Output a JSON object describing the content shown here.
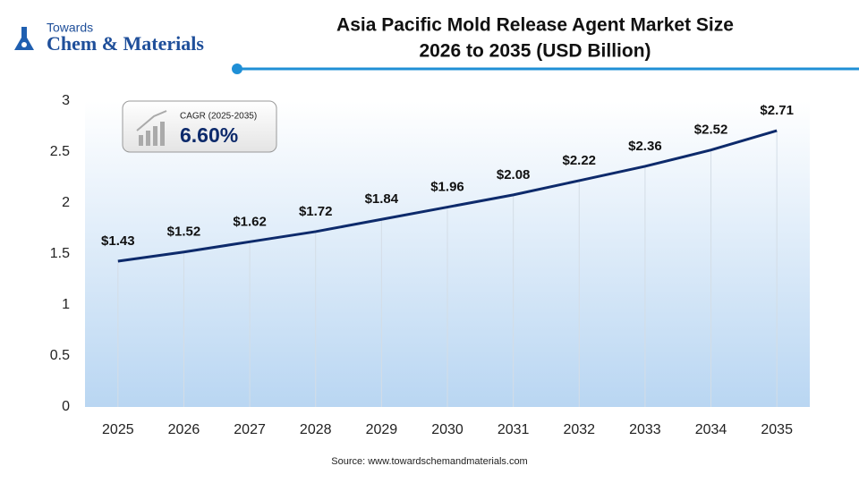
{
  "logo": {
    "top": "Towards",
    "bottom": "Chem & Materials"
  },
  "chart_data": {
    "type": "line",
    "title": [
      "Asia Pacific Mold Release Agent Market Size",
      "2026 to 2035 (USD Billion)"
    ],
    "categories": [
      "2025",
      "2026",
      "2027",
      "2028",
      "2029",
      "2030",
      "2031",
      "2032",
      "2033",
      "2034",
      "2035"
    ],
    "values": [
      1.43,
      1.52,
      1.62,
      1.72,
      1.84,
      1.96,
      2.08,
      2.22,
      2.36,
      2.52,
      2.71
    ],
    "value_labels": [
      "$1.43",
      "$1.52",
      "$1.62",
      "$1.72",
      "$1.84",
      "$1.96",
      "$2.08",
      "$2.22",
      "$2.36",
      "$2.52",
      "$2.71"
    ],
    "color": "#0d2a6b",
    "ylim": [
      0,
      3
    ],
    "yticks": [
      0,
      0.5,
      1,
      1.5,
      2,
      2.5,
      3
    ],
    "annotation": {
      "label": "CAGR (2025-2035)",
      "value": "6.60%"
    },
    "source": "Source: www.towardschemandmaterials.com"
  }
}
